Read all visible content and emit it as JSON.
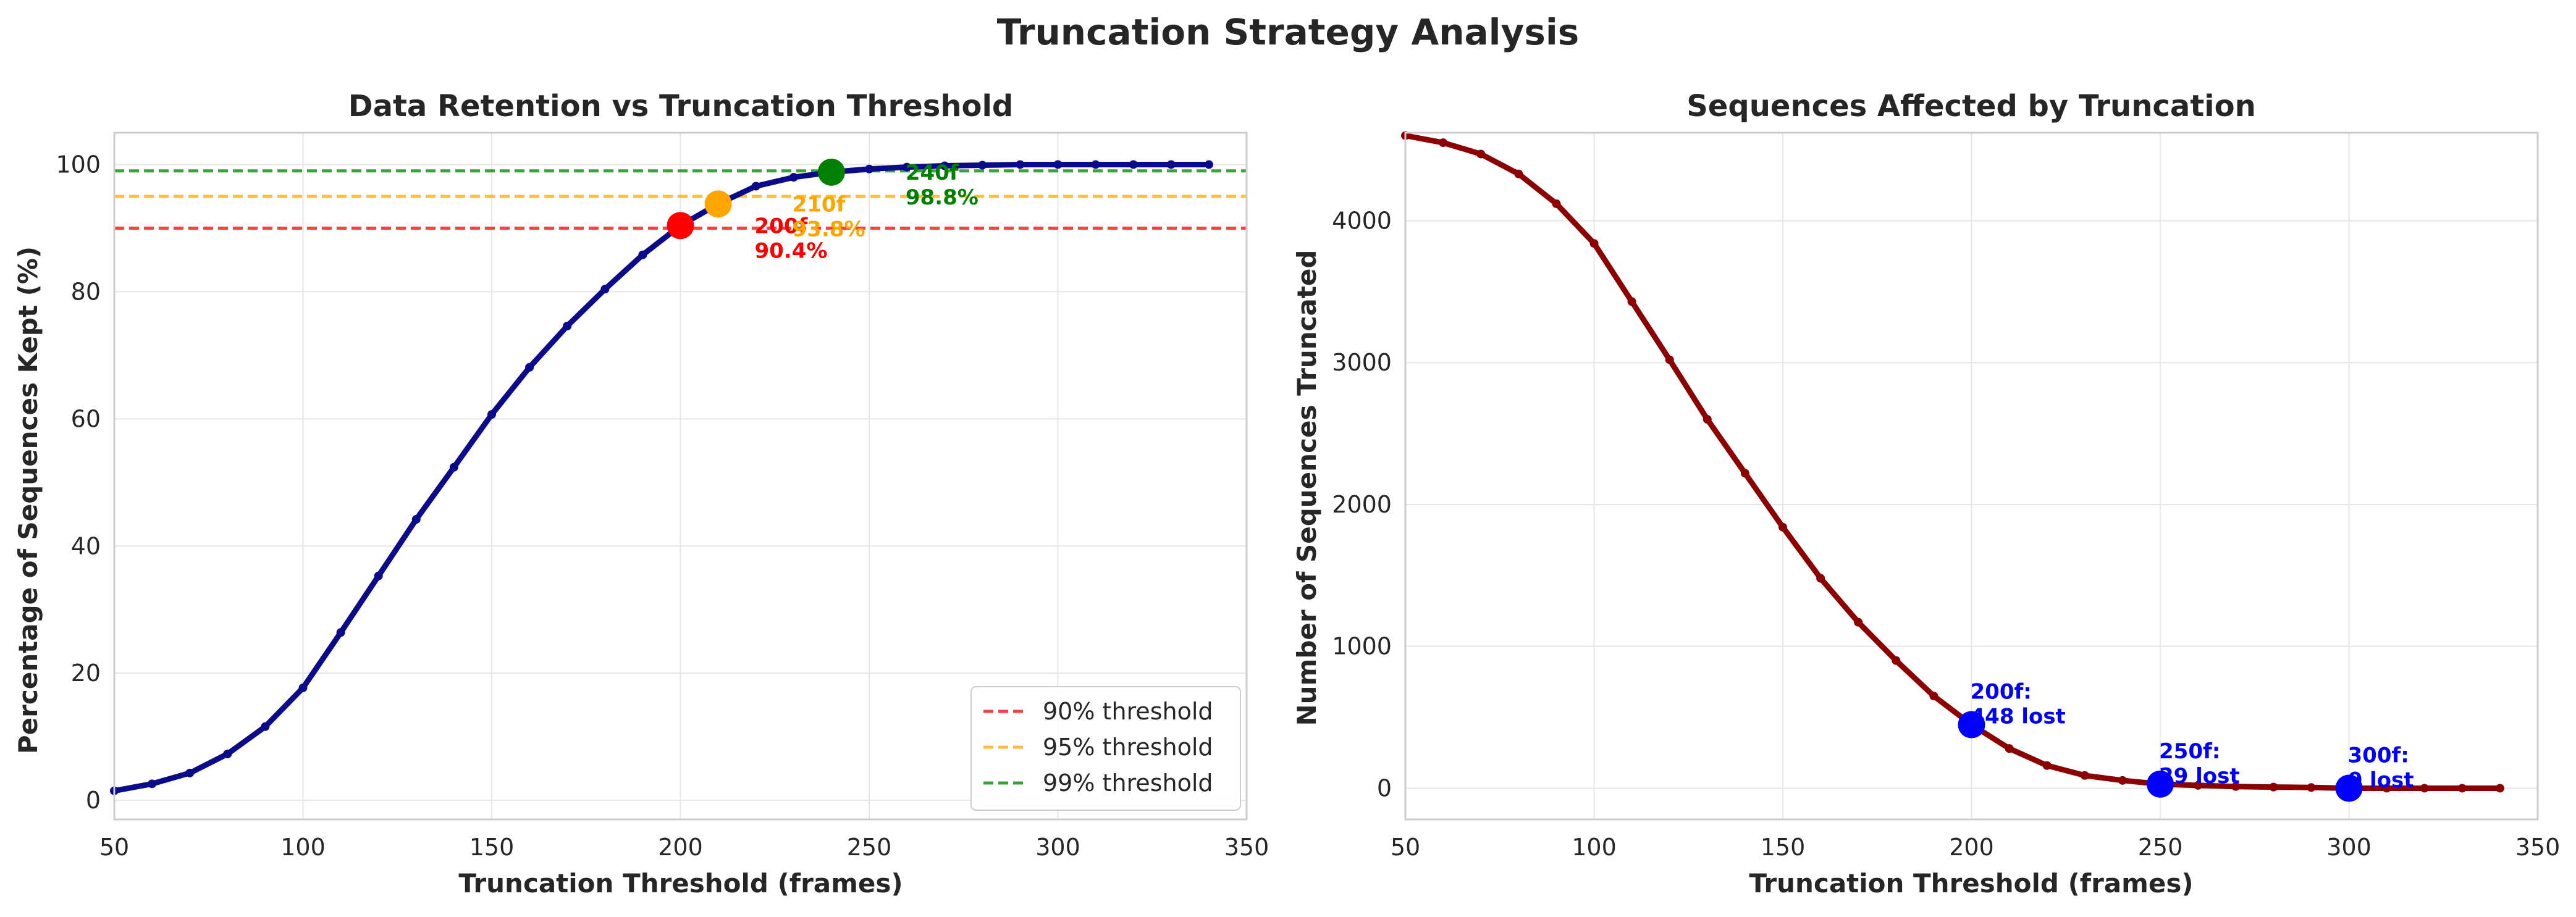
{
  "figure": {
    "suptitle": "Truncation Strategy Analysis"
  },
  "colors": {
    "retention_line": "#0a0a8a",
    "truncated_line": "#8b0000",
    "t90": "#ff0000",
    "t95": "#ffa500",
    "t99": "#008000",
    "marker_blue": "#0000ff",
    "grid": "#e6e6e6",
    "spine": "#cccccc",
    "text": "#262626"
  },
  "chart_data": [
    {
      "type": "line",
      "title": "Data Retention vs Truncation Threshold",
      "xlabel": "Truncation Threshold (frames)",
      "ylabel": "Percentage of Sequences Kept (%)",
      "xlim": [
        50,
        350
      ],
      "ylim": [
        -3,
        105
      ],
      "xticks": [
        50,
        100,
        150,
        200,
        250,
        300,
        350
      ],
      "yticks": [
        0,
        20,
        40,
        60,
        80,
        100
      ],
      "grid": true,
      "legend_position": "lower-right",
      "series": [
        {
          "x": [
            50,
            60,
            70,
            80,
            90,
            100,
            110,
            120,
            130,
            140,
            150,
            160,
            170,
            180,
            190,
            200,
            210,
            220,
            230,
            240,
            250,
            260,
            270,
            280,
            290,
            300,
            310,
            320,
            330,
            340
          ],
          "values": [
            1.5,
            2.6,
            4.3,
            7.3,
            11.6,
            17.7,
            26.4,
            35.3,
            44.2,
            52.4,
            60.7,
            68.1,
            74.6,
            80.4,
            85.8,
            90.4,
            93.8,
            96.6,
            98.0,
            98.8,
            99.3,
            99.6,
            99.8,
            99.9,
            100.0,
            100.0,
            100.0,
            100.0,
            100.0,
            100.0
          ]
        }
      ],
      "thresholds": [
        {
          "label": "90% threshold",
          "y": 90,
          "color": "#ff0000"
        },
        {
          "label": "95% threshold",
          "y": 95,
          "color": "#ffa500"
        },
        {
          "label": "99% threshold",
          "y": 99,
          "color": "#008000"
        }
      ],
      "markers": [
        {
          "x": 200,
          "y": 90.4,
          "color": "#ff0000",
          "label_line1": "200f",
          "label_line2": "90.4%"
        },
        {
          "x": 210,
          "y": 93.8,
          "color": "#ffa500",
          "label_line1": "210f",
          "label_line2": "93.8%"
        },
        {
          "x": 240,
          "y": 98.8,
          "color": "#008000",
          "label_line1": "240f",
          "label_line2": "98.8%"
        }
      ]
    },
    {
      "type": "line",
      "title": "Sequences Affected by Truncation",
      "xlabel": "Truncation Threshold (frames)",
      "ylabel": "Number of Sequences Truncated",
      "xlim": [
        50,
        350
      ],
      "ylim": [
        -220,
        4620
      ],
      "xticks": [
        50,
        100,
        150,
        200,
        250,
        300,
        350
      ],
      "yticks": [
        0,
        1000,
        2000,
        3000,
        4000
      ],
      "grid": true,
      "series": [
        {
          "x": [
            50,
            60,
            70,
            80,
            90,
            100,
            110,
            120,
            130,
            140,
            150,
            160,
            170,
            180,
            190,
            200,
            210,
            220,
            230,
            240,
            250,
            260,
            270,
            280,
            290,
            300,
            310,
            320,
            330,
            340
          ],
          "values": [
            4600,
            4550,
            4470,
            4330,
            4120,
            3840,
            3430,
            3020,
            2600,
            2220,
            1840,
            1480,
            1170,
            900,
            650,
            448,
            280,
            160,
            90,
            55,
            29,
            20,
            12,
            8,
            5,
            0,
            0,
            0,
            0,
            0
          ]
        }
      ],
      "markers": [
        {
          "x": 200,
          "y": 448,
          "label_line1": "200f:",
          "label_line2": "448 lost"
        },
        {
          "x": 250,
          "y": 29,
          "label_line1": "250f:",
          "label_line2": "29 lost"
        },
        {
          "x": 300,
          "y": 0,
          "label_line1": "300f:",
          "label_line2": "0 lost"
        }
      ]
    }
  ]
}
